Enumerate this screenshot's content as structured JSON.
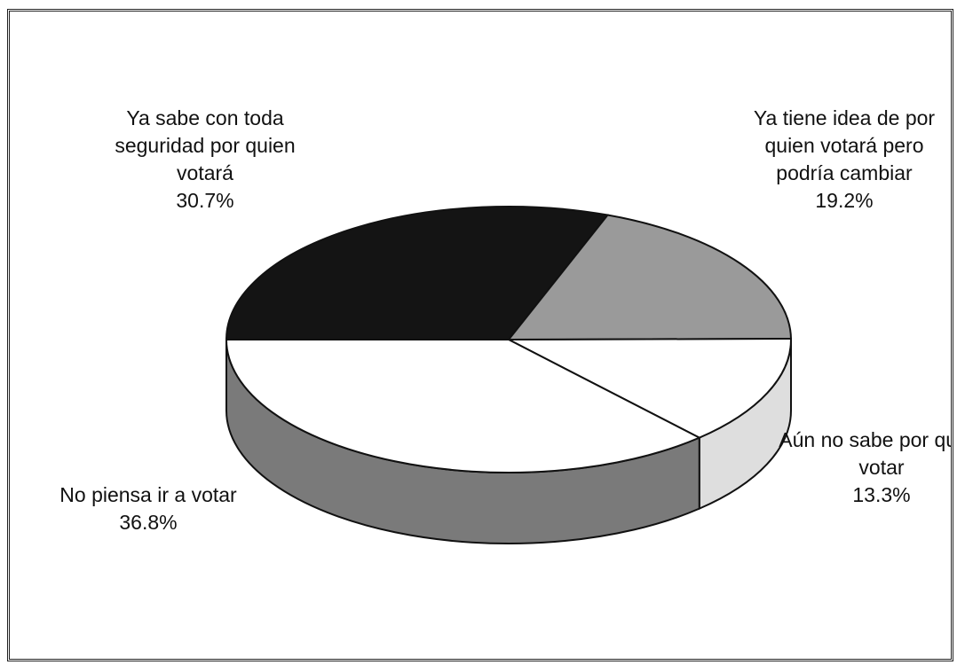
{
  "chart_data": {
    "type": "pie3d",
    "categories": [
      "Ya sabe con toda seguridad por quien votará",
      "Ya tiene idea de por quien votará pero podría cambiar",
      "Aún no sabe por quien votar",
      "No piensa ir a votar"
    ],
    "values": [
      30.7,
      19.2,
      13.3,
      36.8
    ],
    "value_labels": [
      "30.7%",
      "19.2%",
      "13.3%",
      "36.8%"
    ],
    "colors": [
      "#141414",
      "#9a9a9a",
      "#ffffff",
      "#ffffff"
    ],
    "side_colors": [
      "#141414",
      "#8a8a8a",
      "#dedede",
      "#7a7a7a"
    ]
  }
}
